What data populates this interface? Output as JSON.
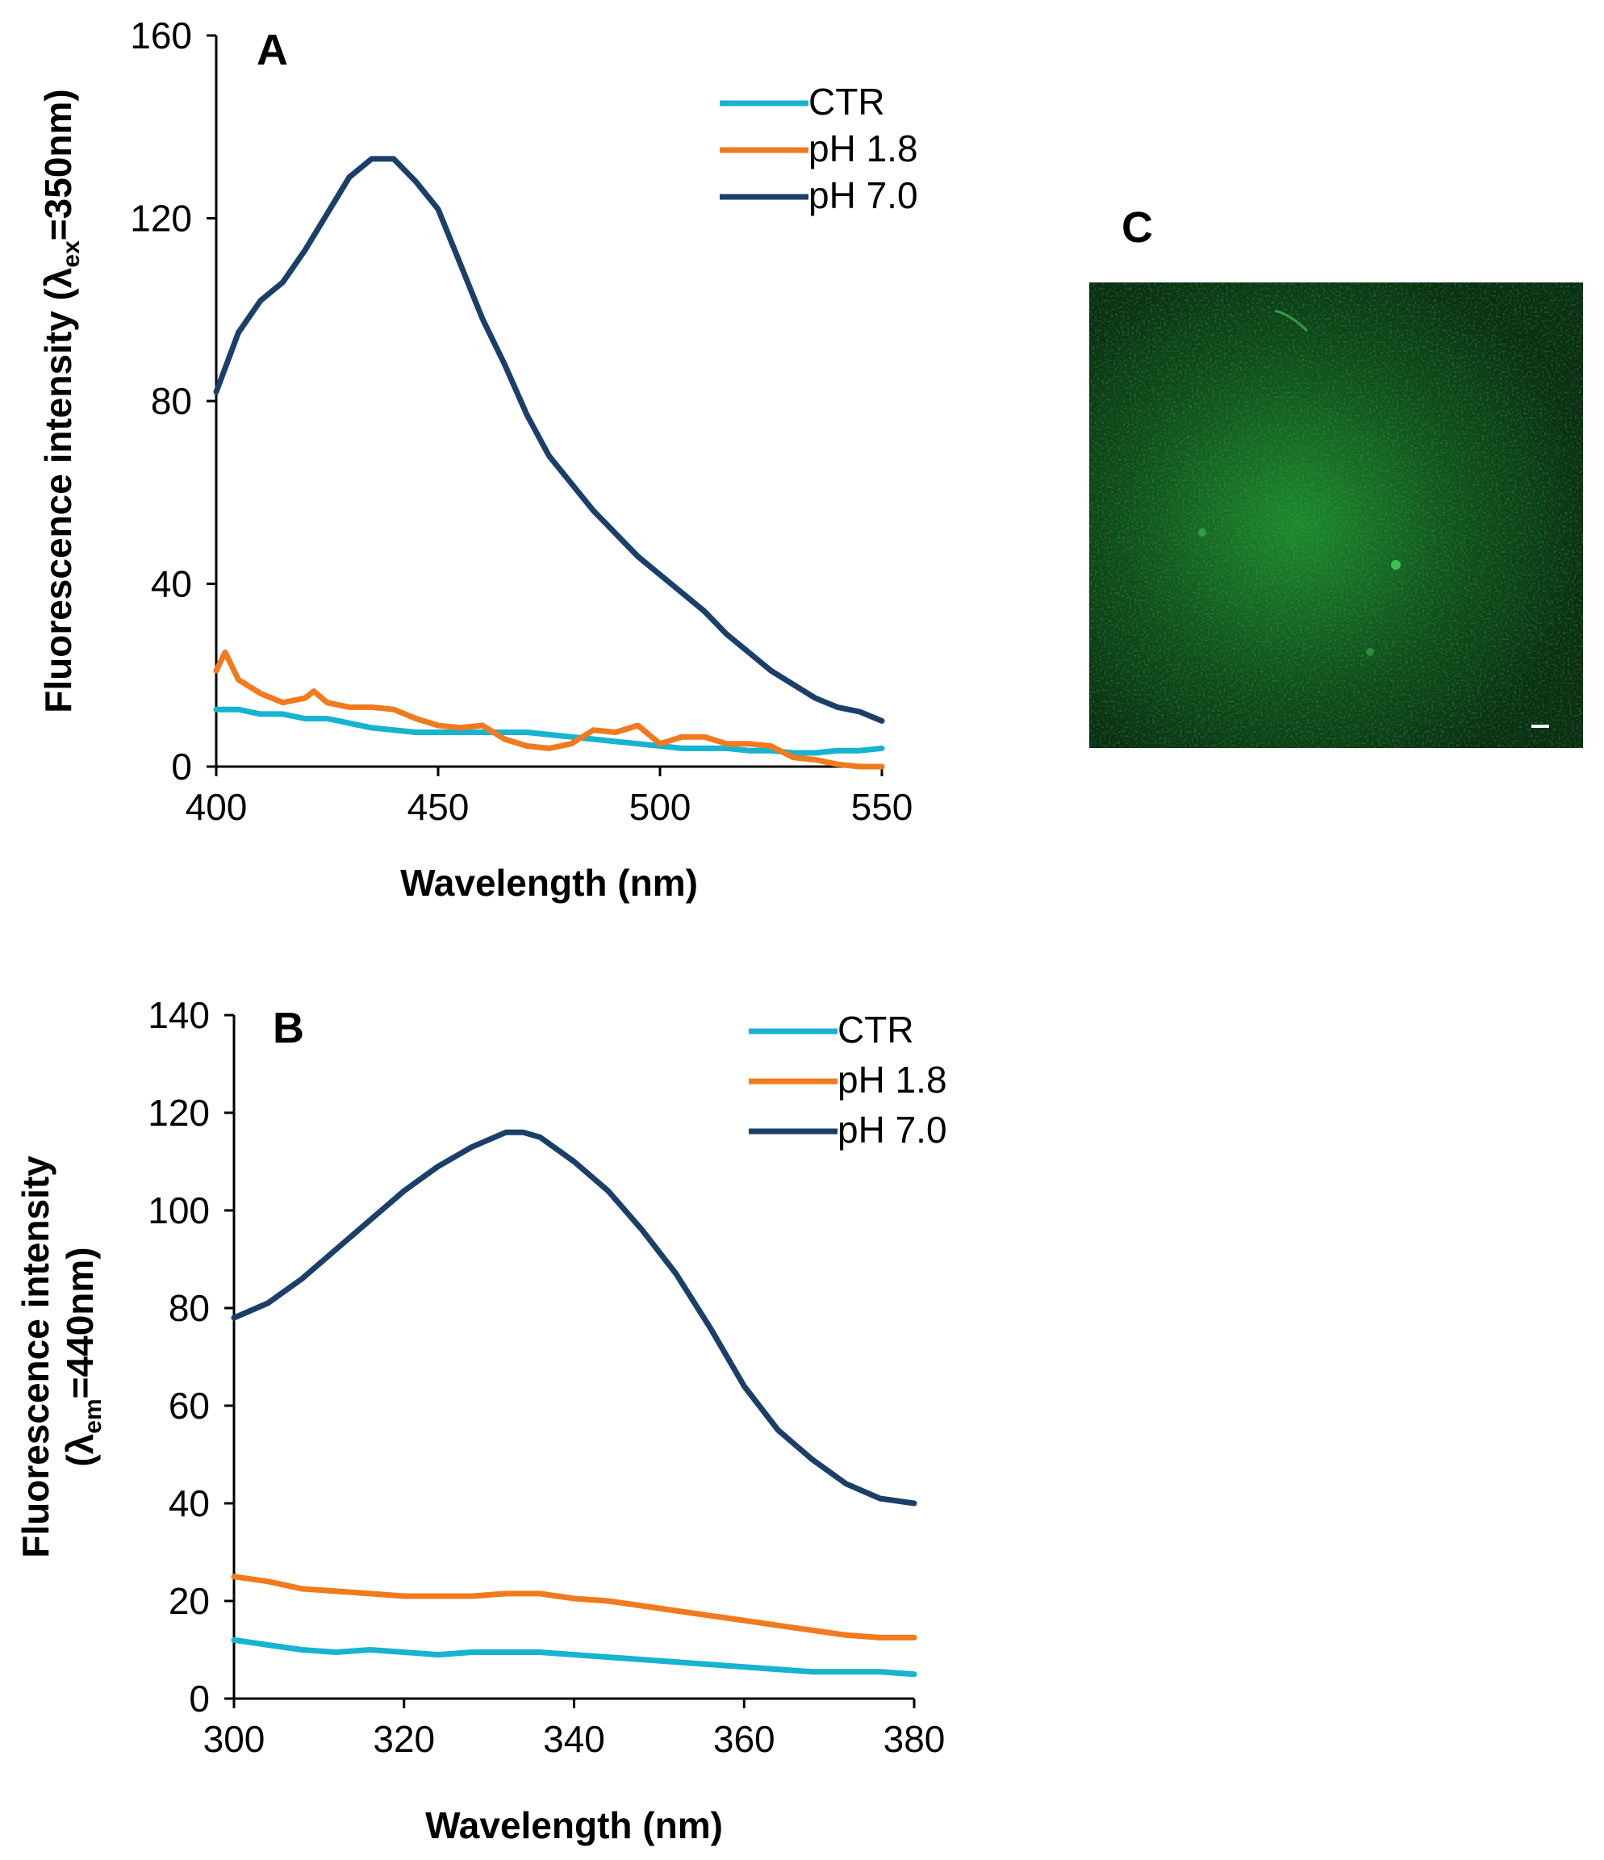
{
  "colors": {
    "CTR": "#17B3D0",
    "pH 1.8": "#F27A1E",
    "pH 7.0": "#1B3F6B"
  },
  "panel_c": {
    "label": "C",
    "image_description_icon": "fluorescence-micrograph"
  },
  "chart_data": [
    {
      "type": "line",
      "panel": "A",
      "title": "",
      "xlabel": "Wavelength (nm)",
      "ylabel": "Fluorescence intensity (λex=350nm)",
      "ylabel_main": "Fluorescence intensity (λ",
      "ylabel_sub": "ex",
      "ylabel_tail": "=350nm)",
      "xlim": [
        400,
        550
      ],
      "ylim": [
        0,
        160
      ],
      "xticks": [
        400,
        450,
        500,
        550
      ],
      "yticks": [
        0,
        40,
        80,
        120,
        160
      ],
      "legend": [
        "CTR",
        "pH 1.8",
        "pH 7.0"
      ],
      "series": [
        {
          "name": "CTR",
          "x": [
            400,
            405,
            410,
            415,
            420,
            425,
            430,
            435,
            440,
            445,
            450,
            455,
            460,
            465,
            470,
            475,
            480,
            485,
            490,
            495,
            500,
            505,
            510,
            515,
            520,
            525,
            530,
            535,
            540,
            545,
            550
          ],
          "y": [
            12.5,
            12.5,
            11.5,
            11.5,
            10.5,
            10.5,
            9.5,
            8.5,
            8,
            7.5,
            7.5,
            7.5,
            7.5,
            7.5,
            7.5,
            7,
            6.5,
            6,
            5.5,
            5,
            4.5,
            4,
            4,
            4,
            3.5,
            3.5,
            3,
            3,
            3.5,
            3.5,
            4
          ]
        },
        {
          "name": "pH 1.8",
          "x": [
            400,
            402,
            405,
            410,
            415,
            420,
            422,
            425,
            430,
            435,
            440,
            445,
            450,
            455,
            460,
            465,
            470,
            475,
            480,
            485,
            490,
            495,
            500,
            505,
            510,
            515,
            520,
            525,
            530,
            535,
            540,
            545,
            550
          ],
          "y": [
            21,
            25,
            19,
            16,
            14,
            15,
            16.5,
            14,
            13,
            13,
            12.5,
            10.5,
            9,
            8.5,
            9,
            6,
            4.5,
            4,
            5,
            8,
            7.5,
            9,
            5,
            6.5,
            6.5,
            5,
            5,
            4.5,
            2,
            1.5,
            0.5,
            0,
            0
          ]
        },
        {
          "name": "pH 7.0",
          "x": [
            400,
            405,
            410,
            415,
            420,
            425,
            430,
            435,
            440,
            445,
            450,
            455,
            460,
            465,
            470,
            475,
            480,
            485,
            490,
            495,
            500,
            505,
            510,
            515,
            520,
            525,
            530,
            535,
            540,
            545,
            550
          ],
          "y": [
            82,
            95,
            102,
            106,
            113,
            121,
            129,
            133,
            133,
            128,
            122,
            110,
            98,
            88,
            77,
            68,
            62,
            56,
            51,
            46,
            42,
            38,
            34,
            29,
            25,
            21,
            18,
            15,
            13,
            12,
            10
          ]
        }
      ]
    },
    {
      "type": "line",
      "panel": "B",
      "title": "",
      "xlabel": "Wavelength (nm)",
      "ylabel": "Fluorescence intensity (λem=440nm)",
      "ylabel_line1": "Fluorescence intensity",
      "ylabel_main": "(λ",
      "ylabel_sub": "em",
      "ylabel_tail": "=440nm)",
      "xlim": [
        300,
        380
      ],
      "ylim": [
        0,
        140
      ],
      "xticks": [
        300,
        320,
        340,
        360,
        380
      ],
      "yticks": [
        0,
        20,
        40,
        60,
        80,
        100,
        120,
        140
      ],
      "legend": [
        "CTR",
        "pH 1.8",
        "pH 7.0"
      ],
      "series": [
        {
          "name": "CTR",
          "x": [
            300,
            304,
            308,
            312,
            316,
            320,
            324,
            328,
            332,
            336,
            340,
            344,
            348,
            352,
            356,
            360,
            364,
            368,
            372,
            376,
            380
          ],
          "y": [
            12,
            11,
            10,
            9.5,
            10,
            9.5,
            9,
            9.5,
            9.5,
            9.5,
            9,
            8.5,
            8,
            7.5,
            7,
            6.5,
            6,
            5.5,
            5.5,
            5.5,
            5
          ]
        },
        {
          "name": "pH 1.8",
          "x": [
            300,
            304,
            308,
            312,
            316,
            320,
            324,
            328,
            332,
            336,
            340,
            344,
            348,
            352,
            356,
            360,
            364,
            368,
            372,
            376,
            380
          ],
          "y": [
            25,
            24,
            22.5,
            22,
            21.5,
            21,
            21,
            21,
            21.5,
            21.5,
            20.5,
            20,
            19,
            18,
            17,
            16,
            15,
            14,
            13,
            12.5,
            12.5
          ]
        },
        {
          "name": "pH 7.0",
          "x": [
            300,
            304,
            308,
            312,
            316,
            320,
            324,
            328,
            332,
            334,
            336,
            340,
            344,
            348,
            352,
            356,
            360,
            364,
            368,
            372,
            376,
            380
          ],
          "y": [
            78,
            81,
            86,
            92,
            98,
            104,
            109,
            113,
            116,
            116,
            115,
            110,
            104,
            96,
            87,
            76,
            64,
            55,
            49,
            44,
            41,
            40
          ]
        }
      ]
    }
  ]
}
